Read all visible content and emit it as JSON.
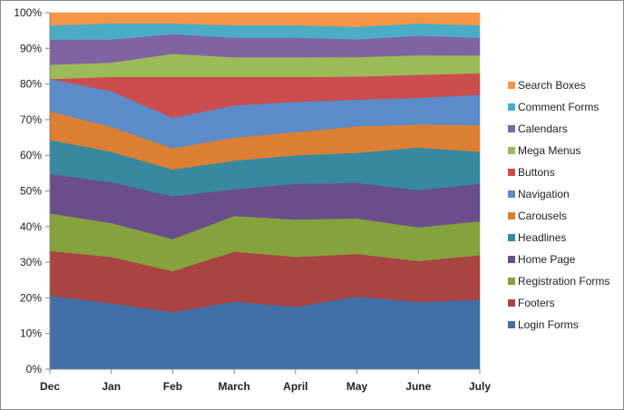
{
  "chart_data": {
    "type": "area",
    "stacked": true,
    "percent": true,
    "title": "",
    "xlabel": "",
    "ylabel": "",
    "ylim": [
      0,
      100
    ],
    "y_ticks": [
      "0%",
      "10%",
      "20%",
      "30%",
      "40%",
      "50%",
      "60%",
      "70%",
      "80%",
      "90%",
      "100%"
    ],
    "x": [
      "Dec",
      "Jan",
      "Feb",
      "March",
      "April",
      "May",
      "June",
      "July"
    ],
    "grid": false,
    "legend_position": "right",
    "series": [
      {
        "name": "Login Forms",
        "color": "#4170A6",
        "values": [
          20.5,
          18.5,
          16,
          19,
          17.5,
          20.5,
          19,
          19.5
        ]
      },
      {
        "name": "Footers",
        "color": "#A94442",
        "values": [
          12.5,
          13,
          11.5,
          14,
          14,
          12,
          11.5,
          12.5
        ]
      },
      {
        "name": "Registration Forms",
        "color": "#86A23D",
        "values": [
          10.5,
          9.5,
          9,
          10,
          10.5,
          10,
          9.5,
          9.5
        ]
      },
      {
        "name": "Home Page",
        "color": "#6A4E8C",
        "values": [
          11,
          11.5,
          12,
          7.5,
          10,
          10,
          10.5,
          10.5
        ]
      },
      {
        "name": "Headlines",
        "color": "#36899F",
        "values": [
          9.5,
          8.5,
          7.5,
          8,
          8,
          8.5,
          12,
          9
        ]
      },
      {
        "name": "Carousels",
        "color": "#DA7F33",
        "values": [
          8,
          7,
          6,
          6.5,
          6.5,
          7.5,
          6.5,
          7.5
        ]
      },
      {
        "name": "Navigation",
        "color": "#5B8BC8",
        "values": [
          9,
          10,
          8.5,
          9,
          8.5,
          7.5,
          7.5,
          8.5
        ]
      },
      {
        "name": "Buttons",
        "color": "#CC4D4D",
        "values": [
          0,
          4,
          11.5,
          8,
          7,
          6.5,
          6.5,
          6
        ]
      },
      {
        "name": "Mega Menus",
        "color": "#9BBB59",
        "values": [
          4,
          4,
          6.5,
          5.5,
          5.5,
          5.5,
          5.5,
          5
        ]
      },
      {
        "name": "Calendars",
        "color": "#8064A2",
        "values": [
          7,
          6.5,
          5.5,
          5.5,
          5.5,
          5,
          5.5,
          5
        ]
      },
      {
        "name": "Comment Forms",
        "color": "#4BACC6",
        "values": [
          4,
          4.5,
          3,
          3.5,
          3.5,
          3.5,
          3.5,
          3.5
        ]
      },
      {
        "name": "Search Boxes",
        "color": "#F79646",
        "values": [
          3.5,
          3,
          3,
          3.5,
          3.5,
          4,
          3,
          3.5
        ]
      }
    ]
  }
}
